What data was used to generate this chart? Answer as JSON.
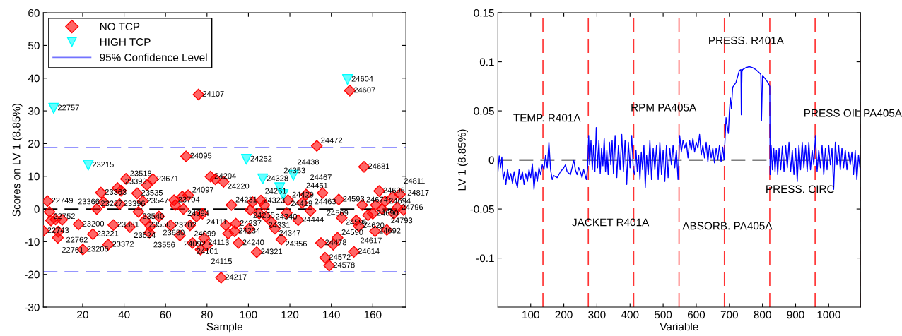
{
  "chart_data": [
    {
      "type": "scatter",
      "xlabel": "Sample",
      "ylabel": "Scores on LV 1 (8.85%)",
      "xlim": [
        1,
        176
      ],
      "ylim": [
        -30,
        60
      ],
      "xticks": [
        20,
        40,
        60,
        80,
        100,
        120,
        140,
        160
      ],
      "yticks": [
        -30,
        -20,
        -10,
        0,
        10,
        20,
        30,
        40,
        50,
        60
      ],
      "grid": false,
      "legend": "top left",
      "series": [
        {
          "name": "NO TCP",
          "color": "#ff0000",
          "marker": "diamond",
          "x": [
            3,
            4,
            1,
            4.7,
            6.9,
            10.1,
            8.2,
            8,
            18,
            20.1,
            24.9,
            26.8,
            28.8,
            30.1,
            32.3,
            34.8,
            36.8,
            38.5,
            37.8,
            40.9,
            42.8,
            46.3,
            46.9,
            49,
            50.1,
            51,
            52.2,
            52.7,
            53.9,
            56.8,
            62.4,
            64.1,
            64.7,
            66.9,
            68.1,
            68.6,
            69.9,
            70.9,
            71.8,
            73,
            74.9,
            75.9,
            76.9,
            77.8,
            78.6,
            80,
            81.7,
            84,
            86.8,
            88,
            89.1,
            90.2,
            91.8,
            93.9,
            93.3,
            95.2,
            102,
            100.9,
            100.3,
            105.2,
            104,
            106,
            108.5,
            107.7,
            111.1,
            112.8,
            115.9,
            118.5,
            119.1,
            124,
            125.9,
            127.8,
            129.9,
            135.8,
            133,
            135,
            137,
            139,
            140.9,
            143.6,
            143,
            145,
            148.9,
            150.9,
            152,
            153.2,
            154.9,
            155.8,
            157.7,
            160,
            161.1,
            161.5,
            163.1,
            164.5,
            165.9,
            166.8,
            169.7,
            170.2,
            171.9,
            173.1,
            174.8
          ],
          "values": [
            2.4,
            -0.9,
            -6.7,
            -3.5,
            -3.2,
            -3.3,
            -6.9,
            -8.8,
            -4.7,
            -12.4,
            -7.7,
            0,
            5.0,
            2.1,
            -10.9,
            -4.9,
            6.4,
            5.6,
            1.5,
            9.2,
            -5.5,
            4.8,
            -0.9,
            2.4,
            -3.4,
            7.3,
            -7.2,
            -5.3,
            9.1,
            -2.3,
            -5.0,
            2.7,
            1.2,
            -8.1,
            3.8,
            0,
            16.1,
            4.2,
            -5.0,
            -10.4,
            -2.3,
            35,
            -12.4,
            -1.4,
            -8.9,
            -11.1,
            9.9,
            9.1,
            -21,
            8.3,
            -5.0,
            -7.5,
            1.2,
            -4.5,
            -6.8,
            -10.4,
            2.1,
            -0.3,
            -6.0,
            -1.4,
            -13.2,
            2.6,
            -2.3,
            1.2,
            -4.0,
            -6.0,
            -9.3,
            -1.2,
            2.7,
            -3.4,
            1.9,
            4.4,
            -0.6,
            4.9,
            19.3,
            -10.4,
            -14.9,
            -17.3,
            -10.9,
            2.9,
            -8.8,
            -2.7,
            36.2,
            -13.1,
            -3.5,
            -5.2,
            1.2,
            12.9,
            -1.9,
            -1.4,
            -6.8,
            1.2,
            5.5,
            0,
            2.3,
            -6.4,
            3.7,
            -1.4,
            0.4,
            4.5,
            -0.3
          ]
        },
        {
          "name": "HIGH TCP",
          "color": "#00ffff",
          "marker": "triangle",
          "x": [
            6,
            22.7,
            99,
            106.9,
            115.1,
            116.8,
            121.7,
            147.8
          ],
          "values": [
            30.8,
            13.4,
            15.2,
            9.2,
            6.5,
            4.4,
            10.3,
            39.6
          ]
        }
      ],
      "ref_lines": [
        {
          "axis": "y",
          "value": 18.8,
          "label": "95% Confidence Level",
          "color": "#7373ff",
          "line_style": "dashed"
        },
        {
          "axis": "y",
          "value": -19.2,
          "color": "#7373ff",
          "line_style": "dashed"
        },
        {
          "axis": "y",
          "value": 0,
          "color": "#000000",
          "line_style": "dashed"
        }
      ],
      "annotations": [
        {
          "text": "22749",
          "x": 3,
          "y": 2.4
        },
        {
          "text": "22752",
          "x": 4,
          "y": -0.9
        },
        {
          "text": "22743",
          "x": 1,
          "y": -6.7
        },
        {
          "text": "22762",
          "x": 10.1,
          "y": -3.3
        },
        {
          "text": "22761",
          "x": 8,
          "y": -8.8
        },
        {
          "text": "23200",
          "x": 18,
          "y": -4.7
        },
        {
          "text": "23206",
          "x": 20.1,
          "y": -12.4
        },
        {
          "text": "23221",
          "x": 24.9,
          "y": -7.7
        },
        {
          "text": "23227",
          "x": 26.8,
          "y": 0
        },
        {
          "text": "23363",
          "x": 28.8,
          "y": 5.0
        },
        {
          "text": "23366",
          "x": 30.1,
          "y": 2.1
        },
        {
          "text": "23372",
          "x": 32.3,
          "y": -10.9
        },
        {
          "text": "23381",
          "x": 34.8,
          "y": -4.9
        },
        {
          "text": "23393",
          "x": 38.5,
          "y": 5.6
        },
        {
          "text": "23396",
          "x": 37.8,
          "y": 1.5
        },
        {
          "text": "23518",
          "x": 40.9,
          "y": 9.2
        },
        {
          "text": "23524",
          "x": 42.8,
          "y": -5.5
        },
        {
          "text": "23535",
          "x": 46.3,
          "y": 4.8
        },
        {
          "text": "23540",
          "x": 46.9,
          "y": -0.9
        },
        {
          "text": "23547",
          "x": 49,
          "y": 2.4
        },
        {
          "text": "23550",
          "x": 50.1,
          "y": -3.4
        },
        {
          "text": "23556",
          "x": 52.2,
          "y": -7.2
        },
        {
          "text": "23671",
          "x": 53.9,
          "y": 9.1
        },
        {
          "text": "23680",
          "x": 56.8,
          "y": -2.3
        },
        {
          "text": "23702",
          "x": 62.4,
          "y": -5.0
        },
        {
          "text": "23704",
          "x": 64.1,
          "y": 2.7
        },
        {
          "text": "24092",
          "x": 66.9,
          "y": -8.1
        },
        {
          "text": "24094",
          "x": 68.6,
          "y": 0
        },
        {
          "text": "24095",
          "x": 69.9,
          "y": 16.1
        },
        {
          "text": "24097",
          "x": 70.9,
          "y": 4.2
        },
        {
          "text": "24099",
          "x": 71.8,
          "y": -5.0
        },
        {
          "text": "24101",
          "x": 73,
          "y": -10.4
        },
        {
          "text": "24107",
          "x": 75.9,
          "y": 35
        },
        {
          "text": "24111",
          "x": 77.8,
          "y": -1.4
        },
        {
          "text": "24113",
          "x": 78.6,
          "y": -8.9
        },
        {
          "text": "24115",
          "x": 80,
          "y": -11.1
        },
        {
          "text": "24204",
          "x": 81.7,
          "y": 9.9
        },
        {
          "text": "24217",
          "x": 86.8,
          "y": -21
        },
        {
          "text": "24220",
          "x": 88,
          "y": 8.3
        },
        {
          "text": "24231",
          "x": 91.8,
          "y": 1.2
        },
        {
          "text": "24237",
          "x": 93.9,
          "y": -4.5
        },
        {
          "text": "24234",
          "x": 93.3,
          "y": -6.8
        },
        {
          "text": "24240",
          "x": 95.2,
          "y": -10.4
        },
        {
          "text": "24255",
          "x": 100.3,
          "y": -6.0
        },
        {
          "text": "24323",
          "x": 105.2,
          "y": -1.4
        },
        {
          "text": "24321",
          "x": 104,
          "y": -13.2
        },
        {
          "text": "24261",
          "x": 106,
          "y": 2.6
        },
        {
          "text": "24331",
          "x": 107.7,
          "y": 1.2
        },
        {
          "text": "24340",
          "x": 111.1,
          "y": -4.0
        },
        {
          "text": "24347",
          "x": 112.8,
          "y": -6.0
        },
        {
          "text": "24356",
          "x": 115.9,
          "y": -9.3
        },
        {
          "text": "24419",
          "x": 118.5,
          "y": -1.2
        },
        {
          "text": "24429",
          "x": 119.1,
          "y": 2.7
        },
        {
          "text": "24444",
          "x": 124,
          "y": -3.4
        },
        {
          "text": "24451",
          "x": 125.9,
          "y": 1.9
        },
        {
          "text": "24467",
          "x": 127.8,
          "y": 4.4
        },
        {
          "text": "24463",
          "x": 129.9,
          "y": -0.6
        },
        {
          "text": "24569",
          "x": 135.8,
          "y": 4.9
        },
        {
          "text": "24472",
          "x": 133,
          "y": 19.3
        },
        {
          "text": "24478",
          "x": 135,
          "y": -10.4
        },
        {
          "text": "24572",
          "x": 137,
          "y": -14.9
        },
        {
          "text": "24578",
          "x": 139,
          "y": -17.3
        },
        {
          "text": "24593",
          "x": 143.6,
          "y": 2.9
        },
        {
          "text": "24590",
          "x": 143,
          "y": -8.8
        },
        {
          "text": "24595",
          "x": 145,
          "y": -2.7
        },
        {
          "text": "24607",
          "x": 148.9,
          "y": 36.2
        },
        {
          "text": "24614",
          "x": 150.9,
          "y": -13.1
        },
        {
          "text": "24617",
          "x": 152,
          "y": -3.5
        },
        {
          "text": "24620",
          "x": 153.2,
          "y": -5.2
        },
        {
          "text": "24674",
          "x": 154.9,
          "y": 1.2
        },
        {
          "text": "24681",
          "x": 155.8,
          "y": 12.9
        },
        {
          "text": "24690",
          "x": 160,
          "y": -1.4
        },
        {
          "text": "24692",
          "x": 161.1,
          "y": -6.8
        },
        {
          "text": "24696",
          "x": 163.1,
          "y": 5.5
        },
        {
          "text": "24694",
          "x": 165.9,
          "y": 2.3
        },
        {
          "text": "24793",
          "x": 166.8,
          "y": -6.4
        },
        {
          "text": "24796",
          "x": 171.9,
          "y": 0.4
        },
        {
          "text": "24811",
          "x": 173.1,
          "y": 4.5
        },
        {
          "text": "24817",
          "x": 174.8,
          "y": -0.3
        },
        {
          "text": "22757",
          "x": 6,
          "y": 30.8
        },
        {
          "text": "23215",
          "x": 22.7,
          "y": 13.4
        },
        {
          "text": "24252",
          "x": 99,
          "y": 15.2
        },
        {
          "text": "24328",
          "x": 106.9,
          "y": 9.2
        },
        {
          "text": "24353",
          "x": 115.1,
          "y": 6.5
        },
        {
          "text": "24438",
          "x": 121.7,
          "y": 10.3
        },
        {
          "text": "24604",
          "x": 147.8,
          "y": 39.6
        }
      ]
    },
    {
      "type": "line",
      "xlabel": "Variable",
      "ylabel": "LV 1 (8.85%)",
      "xlim": [
        1,
        1096
      ],
      "ylim": [
        -0.15,
        0.15
      ],
      "xticks": [
        100,
        200,
        300,
        400,
        500,
        600,
        700,
        800,
        900,
        1000
      ],
      "yticks": [
        -0.1,
        -0.05,
        0,
        0.05,
        0.1,
        0.15
      ],
      "grid": false,
      "marker": "none",
      "line_style": "solid",
      "series": [
        {
          "color": "#0000ff",
          "x": [
            1,
            5,
            9,
            13,
            17,
            21,
            25,
            30,
            35,
            40,
            45,
            50,
            55,
            60,
            65,
            70,
            75,
            80,
            85,
            90,
            95,
            100,
            105,
            110,
            115,
            120,
            125,
            130,
            135,
            140,
            145,
            150,
            155,
            160,
            165,
            170,
            180,
            190,
            200,
            205,
            210,
            220,
            225,
            230,
            235,
            240,
            245,
            250,
            255,
            260,
            268,
            272,
            275,
            278,
            282,
            286,
            290,
            294,
            298,
            302,
            306,
            310,
            314,
            318,
            322,
            326,
            330,
            334,
            338,
            342,
            346,
            350,
            355,
            360,
            365,
            370,
            375,
            380,
            385,
            390,
            395,
            400,
            405,
            410,
            414,
            418,
            422,
            426,
            430,
            434,
            438,
            442,
            446,
            450,
            455,
            460,
            465,
            470,
            475,
            480,
            485,
            490,
            495,
            500,
            505,
            510,
            515,
            520,
            525,
            530,
            535,
            540,
            545,
            550,
            555,
            560,
            565,
            570,
            575,
            580,
            585,
            590,
            595,
            600,
            605,
            610,
            615,
            620,
            625,
            630,
            635,
            640,
            645,
            650,
            655,
            660,
            665,
            670,
            675,
            680,
            684,
            690,
            693,
            697,
            700,
            703,
            706,
            710,
            720,
            730,
            735,
            736,
            738,
            740,
            750,
            760,
            770,
            780,
            790,
            795,
            797,
            800,
            810,
            818,
            822,
            823,
            826,
            830,
            834,
            838,
            842,
            846,
            850,
            855,
            860,
            865,
            870,
            875,
            880,
            885,
            890,
            895,
            900,
            905,
            910,
            915,
            920,
            925,
            930,
            935,
            940,
            945,
            950,
            955,
            960,
            965,
            970,
            975,
            980,
            985,
            990,
            995,
            1000,
            1005,
            1010,
            1015,
            1020,
            1025,
            1030,
            1035,
            1040,
            1045,
            1050,
            1055,
            1060,
            1065,
            1070,
            1075,
            1080,
            1085,
            1090,
            1095
          ],
          "values": [
            -0.012,
            0.004,
            -0.008,
            0.003,
            -0.02,
            -0.012,
            -0.025,
            -0.01,
            -0.02,
            -0.014,
            -0.024,
            -0.012,
            -0.022,
            -0.028,
            -0.01,
            -0.02,
            -0.012,
            -0.025,
            -0.014,
            -0.022,
            -0.01,
            -0.018,
            -0.004,
            -0.03,
            -0.012,
            -0.022,
            -0.008,
            -0.015,
            -0.005,
            -0.01,
            0.005,
            -0.008,
            0.018,
            -0.01,
            -0.02,
            -0.016,
            -0.018,
            -0.012,
            -0.008,
            -0.005,
            -0.012,
            -0.015,
            -0.008,
            0.0,
            -0.01,
            -0.015,
            -0.008,
            -0.012,
            -0.018,
            -0.01,
            -0.02,
            -0.008,
            0.025,
            -0.005,
            0.02,
            -0.01,
            0.015,
            -0.012,
            0.033,
            -0.008,
            0.02,
            -0.014,
            0.012,
            -0.006,
            0.022,
            -0.012,
            0.01,
            -0.015,
            0.018,
            -0.005,
            0.02,
            -0.014,
            0.025,
            -0.018,
            0.015,
            -0.01,
            0.026,
            -0.012,
            0.02,
            -0.025,
            0.018,
            -0.008,
            0.025,
            -0.01,
            -0.015,
            0.01,
            -0.012,
            0.005,
            -0.02,
            0.008,
            -0.01,
            0.015,
            -0.028,
            0.005,
            -0.015,
            0.02,
            -0.02,
            0.012,
            -0.01,
            0.015,
            -0.02,
            0.018,
            -0.015,
            0.01,
            -0.022,
            0.015,
            -0.018,
            0.012,
            -0.005,
            0.015,
            -0.008,
            0.01,
            -0.02,
            0.025,
            0.008,
            0.02,
            0.012,
            0.018,
            0.002,
            0.02,
            0.01,
            0.022,
            0.008,
            0.018,
            0.012,
            0.026,
            0.005,
            0.015,
            0.002,
            0.018,
            -0.002,
            0.015,
            0.002,
            0.012,
            -0.003,
            0.012,
            0.0,
            0.015,
            -0.002,
            0.013,
            0.0,
            0.043,
            0.036,
            0.027,
            0.049,
            0.063,
            0.052,
            0.074,
            0.079,
            0.091,
            0.092,
            0.046,
            0.09,
            0.092,
            0.094,
            0.095,
            0.094,
            0.092,
            0.089,
            0.087,
            0.04,
            0.086,
            0.082,
            0.078,
            0.075,
            -0.015,
            0.015,
            -0.01,
            0.012,
            -0.012,
            0.01,
            -0.015,
            0.012,
            -0.01,
            0.014,
            -0.012,
            0.015,
            -0.008,
            0.018,
            -0.012,
            0.01,
            -0.015,
            0.012,
            -0.022,
            0.015,
            -0.01,
            0.018,
            -0.008,
            0.015,
            -0.012,
            0.018,
            -0.01,
            0.01,
            -0.005,
            0.025,
            -0.012,
            0.01,
            -0.008,
            0.015,
            -0.015,
            0.012,
            -0.01,
            0.015,
            -0.005,
            0.012,
            -0.03,
            0.018,
            -0.005,
            0.015,
            -0.01,
            0.012,
            -0.008,
            0.01,
            -0.01,
            0.008,
            -0.005,
            0.008,
            -0.015,
            0.01,
            -0.02,
            0.005,
            -0.01
          ]
        }
      ],
      "ref_lines": [
        {
          "axis": "y",
          "value": 0,
          "color": "#000000",
          "line_style": "dashed"
        },
        {
          "axis": "x",
          "value": 137,
          "color": "#ff3333",
          "line_style": "dashed"
        },
        {
          "axis": "x",
          "value": 274,
          "color": "#ff3333",
          "line_style": "dashed"
        },
        {
          "axis": "x",
          "value": 411,
          "color": "#ff3333",
          "line_style": "dashed"
        },
        {
          "axis": "x",
          "value": 548,
          "color": "#ff3333",
          "line_style": "dashed"
        },
        {
          "axis": "x",
          "value": 685,
          "color": "#ff3333",
          "line_style": "dashed"
        },
        {
          "axis": "x",
          "value": 822,
          "color": "#ff3333",
          "line_style": "dashed"
        },
        {
          "axis": "x",
          "value": 959,
          "color": "#ff3333",
          "line_style": "dashed"
        },
        {
          "axis": "x",
          "value": 1096,
          "color": "#ff3333",
          "line_style": "dashed"
        }
      ],
      "annotations": [
        "TEMP. R401A",
        "RPM PA405A",
        "JACKET R401A",
        "ABSORB. PA405A",
        "PRESS. R401A",
        "PRESS OIL PA405A",
        "PRESS. CIRC"
      ]
    }
  ]
}
